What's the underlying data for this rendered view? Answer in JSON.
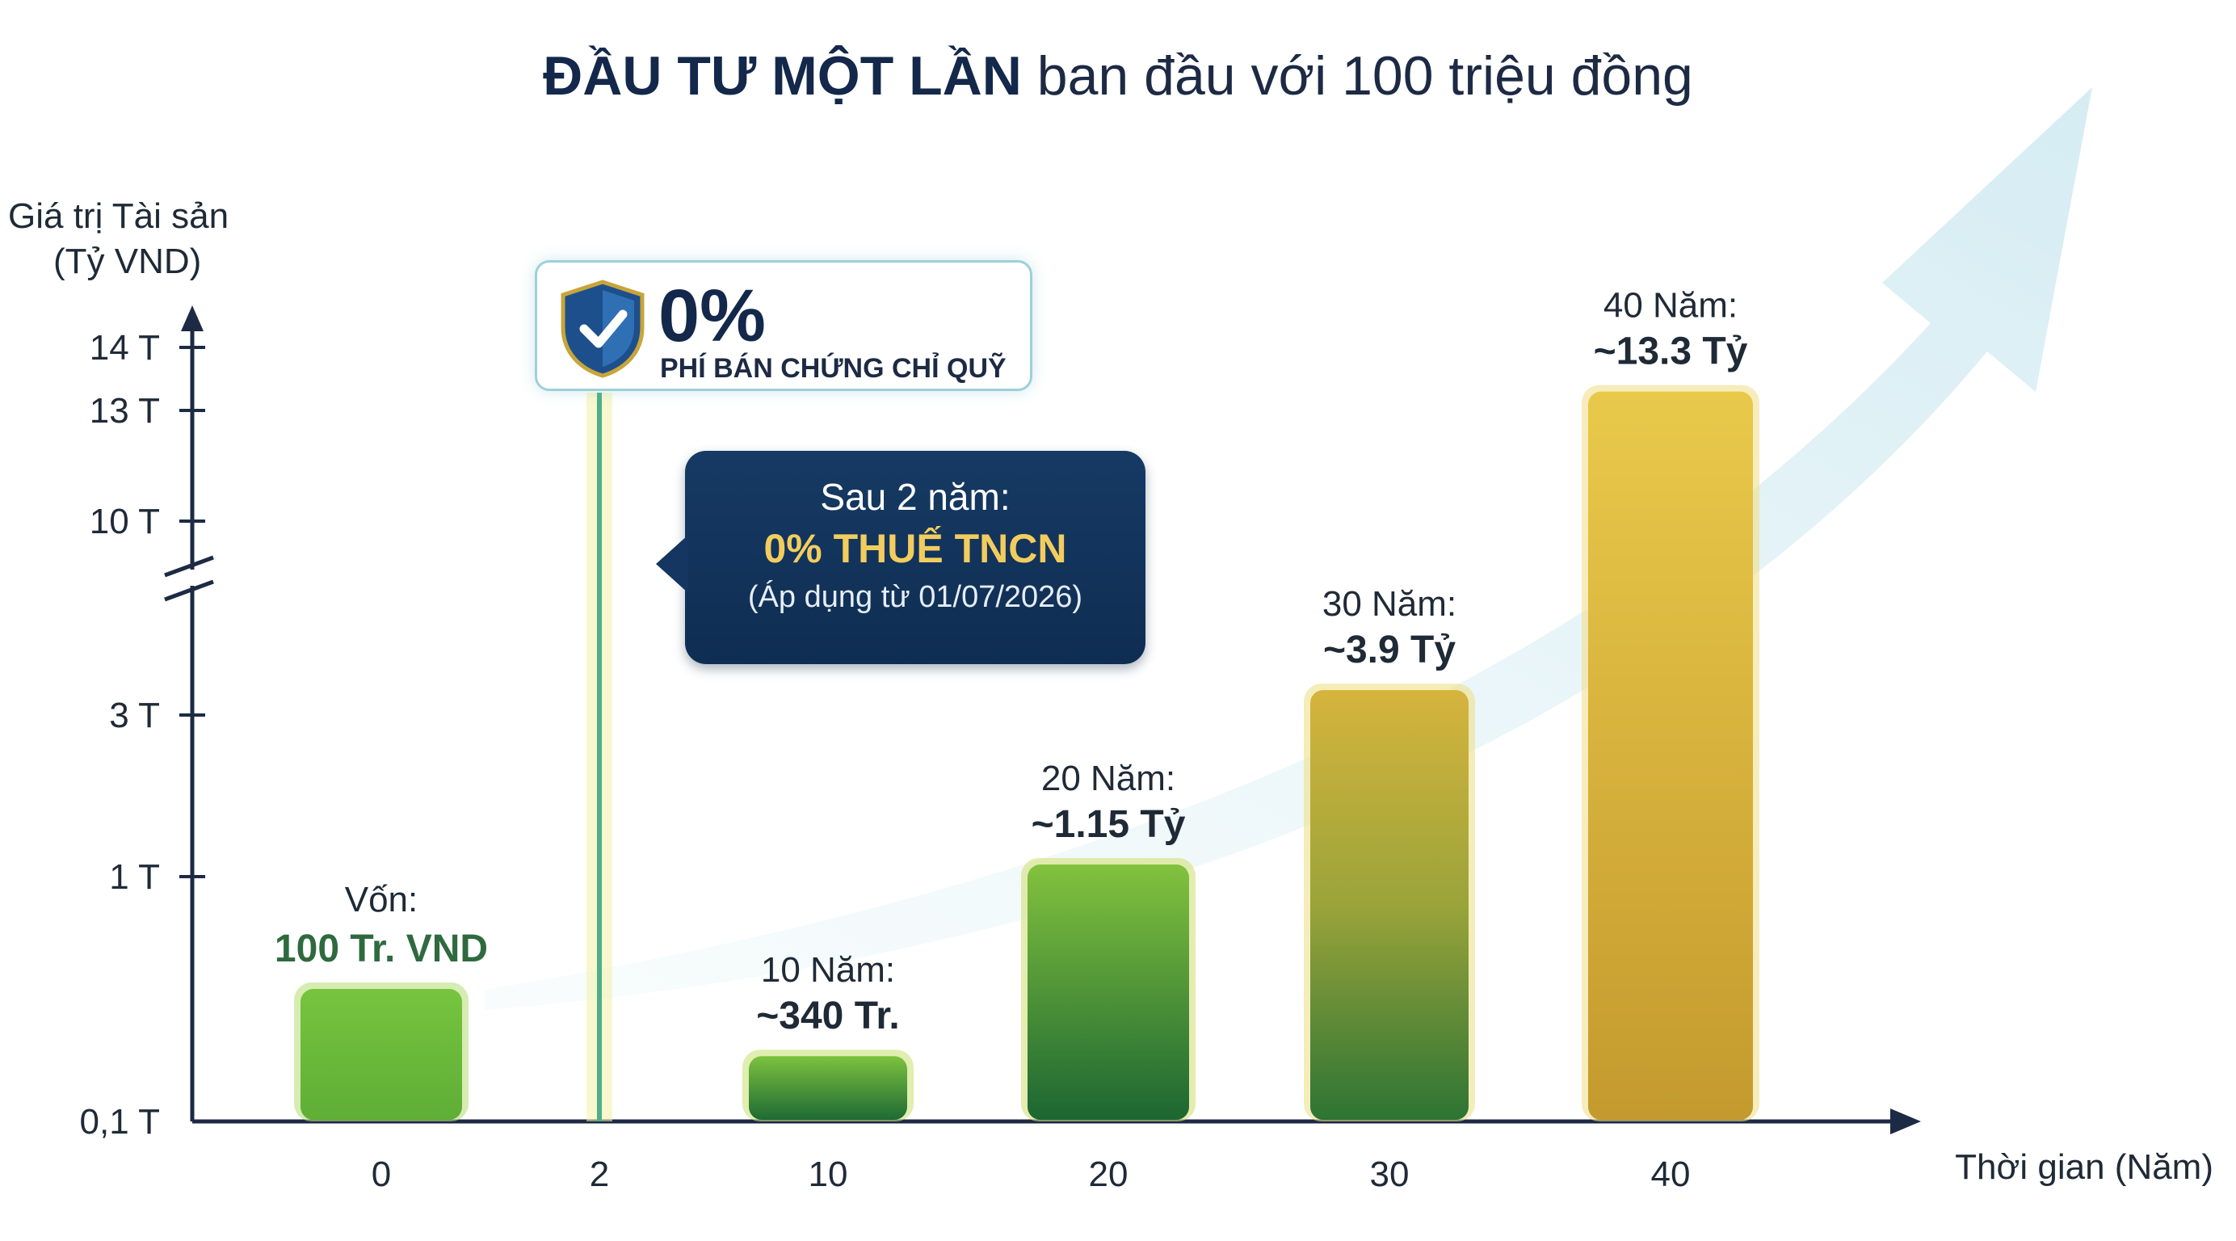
{
  "title": {
    "bold": "ĐẦU TƯ MỘT LẦN",
    "rest": "ban đầu với 100 triệu đồng"
  },
  "chart_data": {
    "type": "bar",
    "yaxis_label": [
      "Giá trị Tài sản",
      "(Tỷ VND)"
    ],
    "xaxis_label": "Thời gian (Năm)",
    "yticks": [
      "0,1 T",
      "1 T",
      "3 T",
      "10 T",
      "13 T",
      "14 T"
    ],
    "ytick_values": [
      0.1,
      1,
      3,
      10,
      13,
      14
    ],
    "yaxis_break": "between 3 T and 10 T",
    "xticks": [
      "0",
      "2",
      "10",
      "20",
      "30",
      "40"
    ],
    "categories": [
      "0",
      "10",
      "20",
      "30",
      "40"
    ],
    "values": [
      0.1,
      0.34,
      1.15,
      3.9,
      13.3
    ],
    "data_labels": [
      {
        "top": "Vốn:",
        "value": "100 Tr. VND"
      },
      {
        "top": "10 Năm:",
        "value": "~340 Tr."
      },
      {
        "top": "20 Năm:",
        "value": "~1.15 Tỷ"
      },
      {
        "top": "30 Năm:",
        "value": "~3.9 Tỷ"
      },
      {
        "top": "40 Năm:",
        "value": "~13.3 Tỷ"
      }
    ],
    "marker_year": "2",
    "colors": {
      "green": "#6fbf3a",
      "dark_green": "#1f6a34",
      "gold": "#d8b53c",
      "axis": "#1d2a44"
    }
  },
  "badge": {
    "percent": "0%",
    "text": "PHÍ BÁN CHỨNG CHỈ QUỸ"
  },
  "callout": {
    "line1": "Sau 2 năm:",
    "line2": "0% THUẾ TNCN",
    "line3": "(Áp dụng từ 01/07/2026)"
  }
}
